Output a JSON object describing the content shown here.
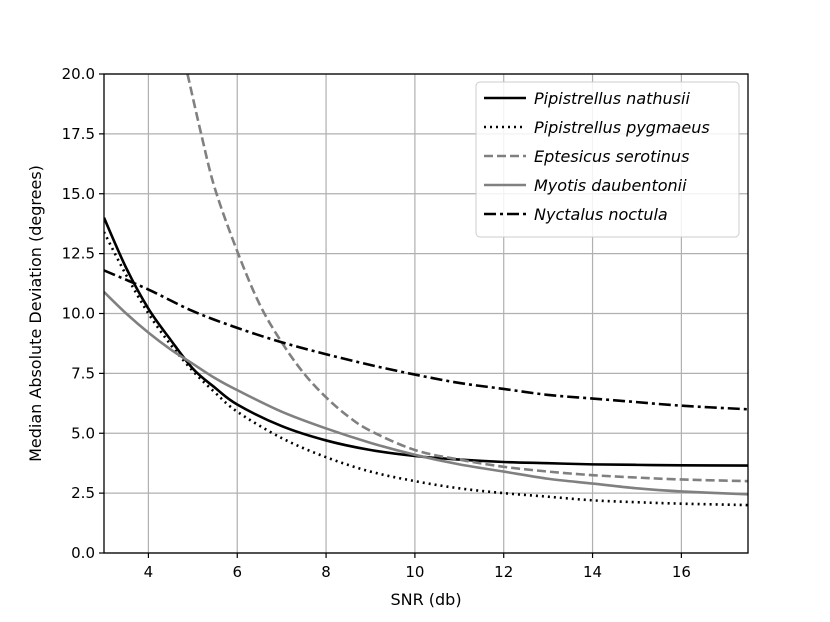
{
  "chart_data": {
    "type": "line",
    "title": "",
    "xlabel": "SNR (db)",
    "ylabel": "Median Absolute Deviation (degrees)",
    "xlim": [
      3,
      17.5
    ],
    "ylim": [
      0,
      20
    ],
    "xticks": [
      4,
      6,
      8,
      10,
      12,
      14,
      16
    ],
    "yticks": [
      "0.0",
      "2.5",
      "5.0",
      "7.5",
      "10.0",
      "12.5",
      "15.0",
      "17.5",
      "20.0"
    ],
    "grid": true,
    "legend_position": "top-right",
    "series": [
      {
        "name": "Pipistrellus nathusii",
        "color": "#000000",
        "dash": "solid",
        "x": [
          3,
          3.5,
          4,
          4.5,
          5,
          5.5,
          6,
          7,
          8,
          9,
          10,
          11,
          12,
          13,
          14,
          15,
          16,
          17.5
        ],
        "y": [
          14.0,
          11.9,
          10.2,
          8.9,
          7.7,
          6.9,
          6.2,
          5.3,
          4.7,
          4.3,
          4.05,
          3.9,
          3.8,
          3.75,
          3.7,
          3.68,
          3.66,
          3.65
        ]
      },
      {
        "name": "Pipistrellus pygmaeus",
        "color": "#000000",
        "dash": "dotted",
        "x": [
          3,
          3.5,
          4,
          4.5,
          5,
          5.5,
          6,
          7,
          8,
          9,
          10,
          11,
          12,
          13,
          14,
          15,
          16,
          17.5
        ],
        "y": [
          13.4,
          11.6,
          10.0,
          8.7,
          7.6,
          6.7,
          5.9,
          4.8,
          4.0,
          3.4,
          3.0,
          2.7,
          2.5,
          2.35,
          2.2,
          2.12,
          2.06,
          2.0
        ]
      },
      {
        "name": "Eptesicus serotinus",
        "color": "#808080",
        "dash": "dashed",
        "x": [
          4.88,
          5.2,
          5.5,
          6,
          6.5,
          7,
          7.5,
          8,
          8.5,
          9,
          10,
          11,
          12,
          13,
          14,
          15,
          16,
          17.5
        ],
        "y": [
          20.0,
          17.4,
          15.2,
          12.6,
          10.4,
          8.8,
          7.5,
          6.5,
          5.7,
          5.1,
          4.3,
          3.9,
          3.6,
          3.4,
          3.25,
          3.15,
          3.07,
          3.0
        ]
      },
      {
        "name": "Myotis daubentonii",
        "color": "#808080",
        "dash": "solid",
        "x": [
          3,
          3.5,
          4,
          4.5,
          5,
          5.5,
          6,
          7,
          8,
          9,
          10,
          11,
          12,
          13,
          14,
          15,
          16,
          17.5
        ],
        "y": [
          10.9,
          10.0,
          9.2,
          8.5,
          7.9,
          7.3,
          6.8,
          5.9,
          5.2,
          4.6,
          4.1,
          3.7,
          3.4,
          3.1,
          2.9,
          2.7,
          2.57,
          2.45
        ]
      },
      {
        "name": "Nyctalus noctula",
        "color": "#000000",
        "dash": "dashdot",
        "x": [
          3,
          4,
          5,
          6,
          7,
          8,
          9,
          10,
          11,
          12,
          13,
          14,
          15,
          16,
          17.5
        ],
        "y": [
          11.8,
          11.0,
          10.1,
          9.4,
          8.8,
          8.3,
          7.85,
          7.45,
          7.1,
          6.85,
          6.6,
          6.45,
          6.3,
          6.15,
          6.0
        ]
      }
    ]
  }
}
